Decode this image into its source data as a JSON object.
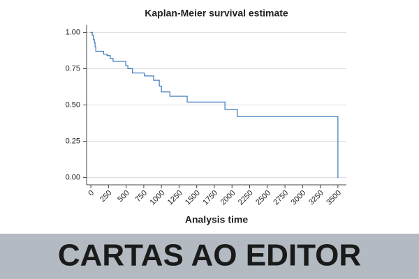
{
  "chart_data": {
    "type": "line",
    "step": "post",
    "title": "Kaplan-Meier survival estimate",
    "x_label": "Analysis time",
    "series": [
      {
        "color": "#3a78b8",
        "x": [
          0,
          20,
          35,
          50,
          60,
          70,
          180,
          230,
          275,
          315,
          495,
          525,
          590,
          760,
          890,
          970,
          1000,
          1120,
          1365,
          1900,
          2075,
          3500
        ],
        "values": [
          1.0,
          0.98,
          0.95,
          0.93,
          0.9,
          0.87,
          0.85,
          0.84,
          0.82,
          0.8,
          0.77,
          0.75,
          0.72,
          0.7,
          0.67,
          0.63,
          0.59,
          0.56,
          0.52,
          0.47,
          0.42,
          0.0
        ]
      }
    ],
    "xlim": [
      -60,
      3620
    ],
    "ylim": [
      -0.05,
      1.05
    ],
    "xticks": [
      0,
      250,
      500,
      750,
      1000,
      1250,
      1500,
      1750,
      2000,
      2250,
      2500,
      2750,
      3000,
      3250,
      3500
    ],
    "yticks": [
      {
        "value": 0,
        "label": "0.00"
      },
      {
        "value": 0.25,
        "label": "0.25"
      },
      {
        "value": 0.5,
        "label": "0.50"
      },
      {
        "value": 0.75,
        "label": "0.75"
      },
      {
        "value": 1,
        "label": "1.00"
      }
    ],
    "grid": true
  },
  "banner": {
    "text": "CARTAS AO EDITOR"
  }
}
